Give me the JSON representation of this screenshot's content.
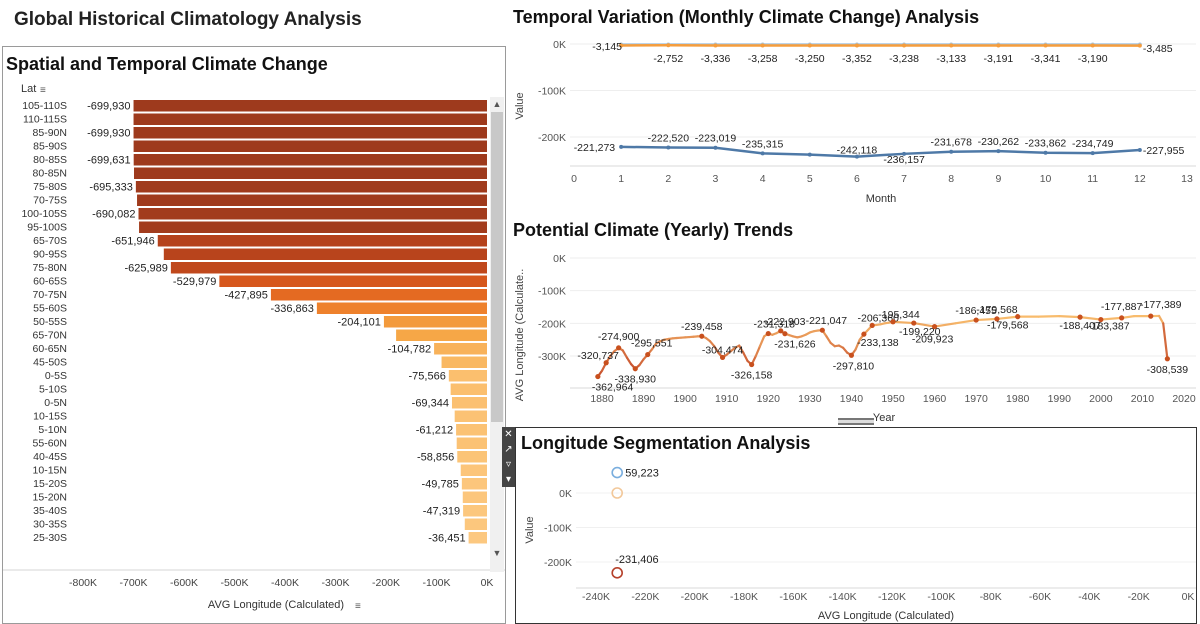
{
  "dashboard_title": "Global Historical Climatology Analysis",
  "spatial": {
    "title": "Spatial and Temporal Climate Change",
    "row_header": "Lat",
    "row_header_sort_icon": "sort-icon",
    "xlabel": "AVG Longitude (Calculated)",
    "x_ticks": [
      "-800K",
      "-700K",
      "-600K",
      "-500K",
      "-400K",
      "-300K",
      "-200K",
      "-100K",
      "0K"
    ]
  },
  "monthly": {
    "title": "Temporal Variation (Monthly Climate Change) Analysis",
    "ylabel": "Value",
    "xlabel": "Month",
    "y_ticks": [
      "0K",
      "-100K",
      "-200K"
    ],
    "x_ticks": [
      "0",
      "1",
      "2",
      "3",
      "4",
      "5",
      "6",
      "7",
      "8",
      "9",
      "10",
      "11",
      "12",
      "13"
    ]
  },
  "yearly": {
    "title": "Potential Climate (Yearly) Trends",
    "ylabel": "AVG Longitude (Calculate..",
    "xlabel": "Year",
    "y_ticks": [
      "0K",
      "-100K",
      "-200K",
      "-300K"
    ],
    "x_ticks": [
      "1880",
      "1890",
      "1900",
      "1910",
      "1920",
      "1930",
      "1940",
      "1950",
      "1960",
      "1970",
      "1980",
      "1990",
      "2000",
      "2010",
      "2020"
    ]
  },
  "longitude": {
    "title": "Longitude Segmentation Analysis",
    "ylabel": "Value",
    "xlabel": "AVG Longitude (Calculated)",
    "y_ticks": [
      "0K",
      "-100K",
      "-200K"
    ],
    "x_ticks": [
      "-240K",
      "-220K",
      "-200K",
      "-180K",
      "-160K",
      "-140K",
      "-120K",
      "-100K",
      "-80K",
      "-60K",
      "-40K",
      "-20K",
      "0K"
    ]
  },
  "chart_data": [
    {
      "type": "bar",
      "orientation": "horizontal",
      "title": "Spatial and Temporal Climate Change",
      "xlabel": "AVG Longitude (Calculated)",
      "ylabel": "Lat",
      "xlim": [
        -830000,
        0
      ],
      "categories": [
        "105-110S",
        "110-115S",
        "85-90N",
        "85-90S",
        "80-85S",
        "80-85N",
        "75-80S",
        "70-75S",
        "100-105S",
        "95-100S",
        "65-70S",
        "90-95S",
        "75-80N",
        "60-65S",
        "70-75N",
        "55-60S",
        "50-55S",
        "65-70N",
        "60-65N",
        "45-50S",
        "0-5S",
        "5-10S",
        "0-5N",
        "10-15S",
        "5-10N",
        "55-60N",
        "40-45S",
        "10-15N",
        "15-20S",
        "15-20N",
        "35-40S",
        "30-35S",
        "25-30S"
      ],
      "values": [
        -699930,
        -699930,
        -699930,
        -699800,
        -699631,
        -699000,
        -695333,
        -693000,
        -690082,
        -689000,
        -651946,
        -640000,
        -625989,
        -529979,
        -427895,
        -336863,
        -204101,
        -180000,
        -104782,
        -90000,
        -75566,
        -72000,
        -69344,
        -64000,
        -61212,
        -60000,
        -58856,
        -52000,
        -49785,
        -48000,
        -47319,
        -44000,
        -36451
      ],
      "data_labels": [
        "-699,930",
        "",
        "-699,930",
        "",
        "-699,631",
        "",
        "-695,333",
        "",
        "-690,082",
        "",
        "-651,946",
        "",
        "-625,989",
        "-529,979",
        "-427,895",
        "-336,863",
        "-204,101",
        "",
        "-104,782",
        "",
        "-75,566",
        "",
        "-69,344",
        "",
        "-61,212",
        "",
        "-58,856",
        "",
        "-49,785",
        "",
        "-47,319",
        "",
        "-36,451"
      ],
      "colors": [
        "#9e3a1d",
        "#9e3a1d",
        "#9e3a1d",
        "#9e3a1d",
        "#9e3a1d",
        "#9e3a1d",
        "#a03b1d",
        "#a03b1d",
        "#a23c1d",
        "#a23c1d",
        "#b5421c",
        "#b8441c",
        "#c0481c",
        "#d6571c",
        "#e46a22",
        "#ee812c",
        "#f39a3c",
        "#f6a747",
        "#f8b25a",
        "#f9b862",
        "#fbbf6e",
        "#fbbf6e",
        "#fbc071",
        "#fbc274",
        "#fbc274",
        "#fbc274",
        "#fbc477",
        "#fcc57a",
        "#fcc67c",
        "#fcc67c",
        "#fcc77d",
        "#fcc77d",
        "#fcc880"
      ]
    },
    {
      "type": "line",
      "title": "Temporal Variation (Monthly Climate Change) Analysis",
      "xlabel": "Month",
      "ylabel": "Value",
      "xlim": [
        0,
        13
      ],
      "ylim": [
        -260000,
        10000
      ],
      "x": [
        1,
        2,
        3,
        4,
        5,
        6,
        7,
        8,
        9,
        10,
        11,
        12
      ],
      "series": [
        {
          "values": [
            -1200,
            -1200,
            -1200,
            -1200,
            -1200,
            -1200,
            -1200,
            -1200,
            -1200,
            -1200,
            -1200,
            -1200
          ],
          "color": "#a7c6e0",
          "data_labels": [
            "",
            "",
            "",
            "",
            "",
            "",
            "",
            "",
            "",
            "",
            "",
            ""
          ]
        },
        {
          "values": [
            -3145,
            -2752,
            -3336,
            -3258,
            -3250,
            -3352,
            -3238,
            -3133,
            -3191,
            -3341,
            -3190,
            -3485
          ],
          "color": "#f59d3d",
          "data_labels": [
            "-3,145",
            "-2,752",
            "-3,336",
            "-3,258",
            "-3,250",
            "-3,352",
            "-3,238",
            "-3,133",
            "-3,191",
            "-3,341",
            "-3,190",
            "-3,485"
          ]
        },
        {
          "values": [
            -221273,
            -222520,
            -223019,
            -235315,
            -238000,
            -242118,
            -236157,
            -231678,
            -230262,
            -233862,
            -234749,
            -227955
          ],
          "color": "#4e79a7",
          "data_labels": [
            "-221,273",
            "-222,520",
            "-223,019",
            "-235,315",
            "",
            "-242,118",
            "-236,157",
            "-231,678",
            "-230,262",
            "-233,862",
            "-234,749",
            "-227,955"
          ]
        }
      ]
    },
    {
      "type": "line",
      "title": "Potential Climate (Yearly) Trends",
      "xlabel": "Year",
      "ylabel": "AVG Longitude (Calculate..",
      "xlim": [
        1877,
        2023
      ],
      "ylim": [
        -380000,
        0
      ],
      "x": [
        1879,
        1880,
        1881,
        1882,
        1883,
        1884,
        1885,
        1886,
        1887,
        1888,
        1889,
        1890,
        1891,
        1892,
        1893,
        1894,
        1895,
        1896,
        1897,
        1898,
        1899,
        1900,
        1901,
        1902,
        1903,
        1904,
        1905,
        1906,
        1907,
        1908,
        1909,
        1910,
        1911,
        1912,
        1913,
        1914,
        1915,
        1916,
        1917,
        1918,
        1919,
        1920,
        1921,
        1922,
        1923,
        1924,
        1925,
        1926,
        1927,
        1928,
        1929,
        1930,
        1931,
        1932,
        1933,
        1934,
        1935,
        1936,
        1937,
        1938,
        1939,
        1940,
        1941,
        1942,
        1943,
        1944,
        1945,
        1946,
        1947,
        1948,
        1949,
        1950,
        1955,
        1960,
        1965,
        1970,
        1975,
        1980,
        1985,
        1990,
        1995,
        2000,
        2005,
        2008,
        2012,
        2014,
        2015,
        2016
      ],
      "values": [
        -362964,
        -345000,
        -320737,
        -300000,
        -285000,
        -274900,
        -283000,
        -305000,
        -325000,
        -338930,
        -328000,
        -310000,
        -295551,
        -280000,
        -262000,
        -255000,
        -250000,
        -248000,
        -246000,
        -245000,
        -244000,
        -243000,
        -242000,
        -241000,
        -240000,
        -239458,
        -245000,
        -255000,
        -270000,
        -290000,
        -304474,
        -296000,
        -285000,
        -275000,
        -268000,
        -290000,
        -315000,
        -326158,
        -300000,
        -270000,
        -240000,
        -231318,
        -235000,
        -230000,
        -222903,
        -231626,
        -236000,
        -240000,
        -243000,
        -240000,
        -235000,
        -228000,
        -224000,
        -222000,
        -221047,
        -240000,
        -260000,
        -270000,
        -268000,
        -275000,
        -290000,
        -297810,
        -280000,
        -250000,
        -233138,
        -220000,
        -206360,
        -205000,
        -203000,
        -200000,
        -198000,
        -195344,
        -199220,
        -209923,
        -200000,
        -190000,
        -186455,
        -179568,
        -179568,
        -178000,
        -181000,
        -188407,
        -183387,
        -177887,
        -178000,
        -177389,
        -200000,
        -308539
      ],
      "color": "#f39a3c",
      "labeled_points": [
        {
          "x": 1879,
          "label": "-362,964"
        },
        {
          "x": 1881,
          "label": "-320,737"
        },
        {
          "x": 1884,
          "label": "-274,900"
        },
        {
          "x": 1888,
          "label": "-338,930"
        },
        {
          "x": 1891,
          "label": "-295,551"
        },
        {
          "x": 1904,
          "label": "-239,458"
        },
        {
          "x": 1909,
          "label": "-304,474"
        },
        {
          "x": 1916,
          "label": "-326,158"
        },
        {
          "x": 1920,
          "label": "-231,318"
        },
        {
          "x": 1923,
          "label": "-222,903"
        },
        {
          "x": 1924,
          "label": "-231,626"
        },
        {
          "x": 1933,
          "label": "-221,047"
        },
        {
          "x": 1940,
          "label": "-297,810"
        },
        {
          "x": 1943,
          "label": "-233,138"
        },
        {
          "x": 1945,
          "label": "-206,360"
        },
        {
          "x": 1950,
          "label": "-195,344"
        },
        {
          "x": 1955,
          "label": "-199,220"
        },
        {
          "x": 1960,
          "label": "-209,923"
        },
        {
          "x": 1970,
          "label": "-186,455"
        },
        {
          "x": 1975,
          "label": "-179,568"
        },
        {
          "x": 1980,
          "label": "-179,568"
        },
        {
          "x": 1995,
          "label": "-188,407"
        },
        {
          "x": 2000,
          "label": "-183,387"
        },
        {
          "x": 2005,
          "label": "-177,887"
        },
        {
          "x": 2012,
          "label": "-177,389"
        },
        {
          "x": 2016,
          "label": "-308,539"
        }
      ]
    },
    {
      "type": "scatter",
      "title": "Longitude Segmentation Analysis",
      "xlabel": "AVG Longitude (Calculated)",
      "ylabel": "Value",
      "xlim": [
        -245000,
        0
      ],
      "ylim": [
        -260000,
        90000
      ],
      "points": [
        {
          "x": -231406,
          "y": 59223,
          "label": "59,223",
          "color": "#7aaede"
        },
        {
          "x": -231406,
          "y": 0,
          "label": "",
          "color": "#f2c89a"
        },
        {
          "x": -231406,
          "y": -231406,
          "label": "-231,406",
          "color": "#b5402a"
        }
      ]
    }
  ]
}
